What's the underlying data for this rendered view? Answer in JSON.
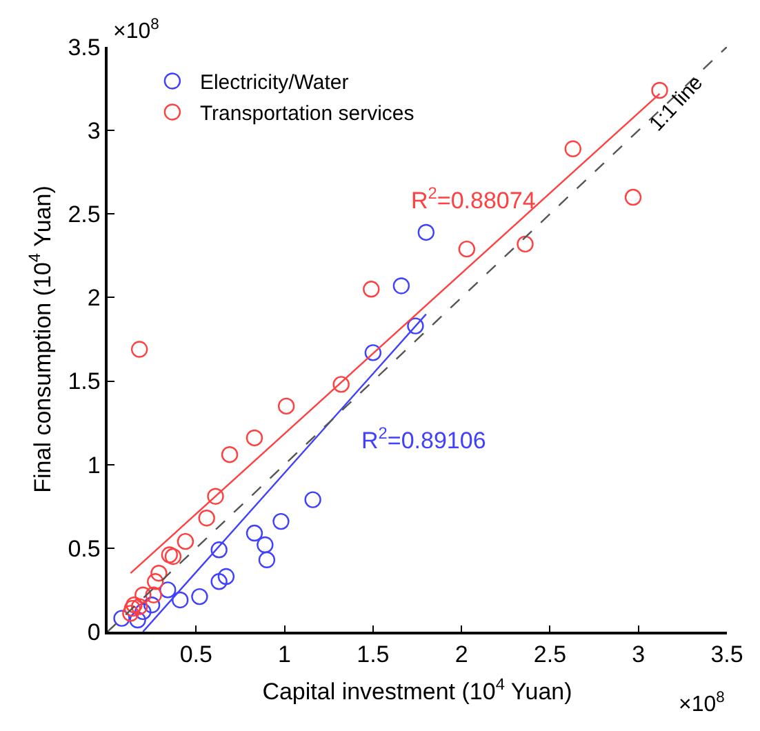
{
  "chart_data": {
    "type": "scatter",
    "xlabel": "Capital investment (10$^{4}$ Yuan)",
    "ylabel": "Final consumption (10$^{4}$ Yuan)",
    "xlim": [
      0,
      3.5
    ],
    "ylim": [
      0,
      3.5
    ],
    "xticks": [
      0.5,
      1,
      1.5,
      2,
      2.5,
      3,
      3.5
    ],
    "yticks": [
      0,
      0.5,
      1,
      1.5,
      2,
      2.5,
      3,
      3.5
    ],
    "legend": "top left",
    "marker": "circle",
    "series": [
      {
        "name": "Electricity/Water",
        "color": "#4040ff",
        "x": [
          1.8,
          1.66,
          1.74,
          1.5,
          1.16,
          0.98,
          0.83,
          0.89,
          0.63,
          0.9,
          0.67,
          0.63,
          0.52,
          0.41,
          0.34,
          0.25,
          0.17,
          0.08,
          0.17,
          0.2
        ],
        "values": [
          2.39,
          2.07,
          1.83,
          1.67,
          0.79,
          0.66,
          0.59,
          0.52,
          0.49,
          0.43,
          0.33,
          0.3,
          0.21,
          0.19,
          0.25,
          0.16,
          0.07,
          0.08,
          null,
          0.12
        ]
      },
      {
        "name": "Transportation services",
        "color": "#ff4040",
        "x": [
          3.12,
          2.63,
          2.97,
          2.36,
          2.03,
          1.49,
          1.32,
          1.01,
          0.83,
          0.18,
          0.69,
          0.61,
          0.56,
          0.44,
          0.35,
          0.37,
          0.29,
          0.27,
          0.26,
          0.2,
          0.15,
          0.14,
          0.13,
          0.18
        ],
        "values": [
          3.24,
          2.89,
          2.6,
          2.32,
          2.29,
          2.05,
          1.48,
          1.35,
          1.16,
          1.69,
          1.06,
          0.81,
          0.68,
          0.54,
          0.46,
          0.45,
          0.35,
          0.3,
          0.22,
          0.22,
          0.16,
          0.14,
          0.11,
          0.15
        ]
      },
      {
        "type": "line",
        "marker": "none",
        "color": "#ff4040",
        "line_style": "solid",
        "x": [
          0.13,
          3.12
        ],
        "values": [
          0.35,
          3.22
        ]
      },
      {
        "type": "line",
        "marker": "none",
        "color": "#4040ff",
        "line_style": "solid",
        "x": [
          0.2,
          1.8
        ],
        "values": [
          0,
          1.9
        ]
      },
      {
        "type": "line",
        "marker": "none",
        "color": "#555555",
        "line_style": "dashed",
        "x": [
          0,
          3.5
        ],
        "values": [
          0,
          3.5
        ]
      }
    ],
    "annotations": [
      "R$^{2}$=0.88074",
      "R$^{2}$=0.89106",
      {
        "text": "1:1 line",
        "x": 3.21,
        "y": 3.16
      },
      "×10$^{8}$",
      "×10$^{8}$"
    ]
  }
}
